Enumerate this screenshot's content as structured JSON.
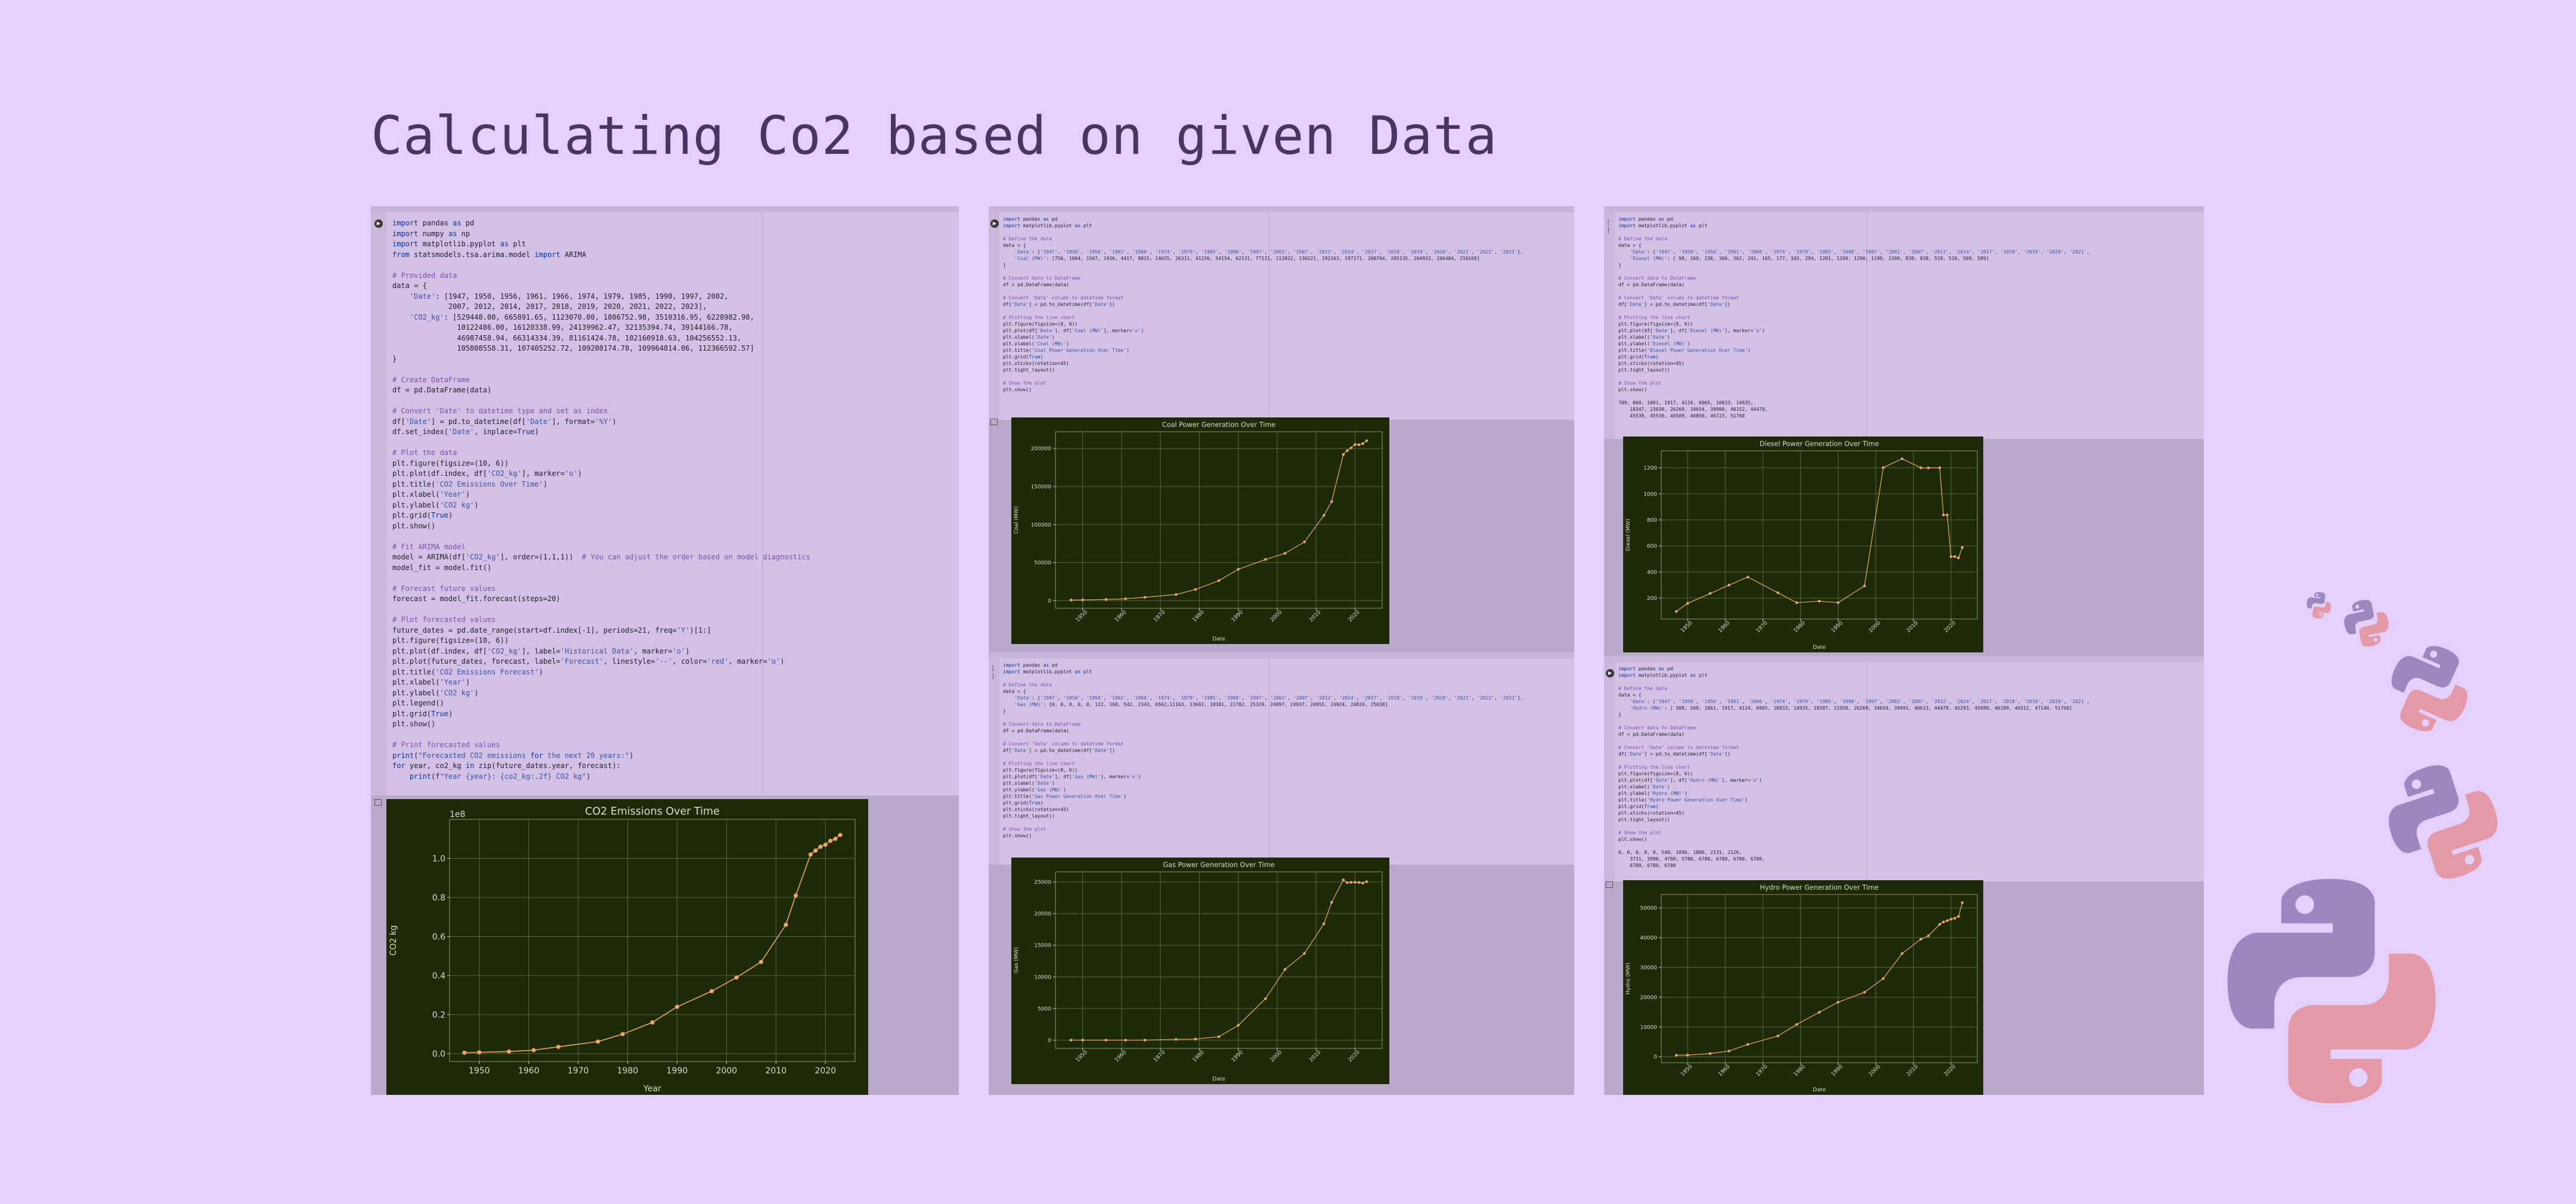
{
  "page": {
    "title": "Calculating Co2 based on given Data"
  },
  "notebook_1": {
    "code": "import pandas as pd\nimport numpy as np\nimport matplotlib.pyplot as plt\nfrom statsmodels.tsa.arima.model import ARIMA\n\n# Provided data\ndata = {\n    'Date': [1947, 1950, 1956, 1961, 1966, 1974, 1979, 1985, 1990, 1997, 2002,\n             2007, 2012, 2014, 2017, 2018, 2019, 2020, 2021, 2022, 2023],\n    'CO2_kg': [529448.00, 665891.65, 1123070.00, 1806752.98, 3510316.95, 6228982.98,\n               10122486.00, 16120338.99, 24139962.47, 32135394.74, 39144166.78,\n               46987458.94, 66314334.39, 81161424.78, 102160918.63, 104256552.13,\n               105808558.31, 107405252.72, 109208174.78, 109964814.06, 112366592.57]\n}\n\n# Create DataFrame\ndf = pd.DataFrame(data)\n\n# Convert 'Date' to datetime type and set as index\ndf['Date'] = pd.to_datetime(df['Date'], format='%Y')\ndf.set_index('Date', inplace=True)\n\n# Plot the data\nplt.figure(figsize=(10, 6))\nplt.plot(df.index, df['CO2_kg'], marker='o')\nplt.title('CO2 Emissions Over Time')\nplt.xlabel('Year')\nplt.ylabel('CO2 kg')\nplt.grid(True)\nplt.show()\n\n# Fit ARIMA model\nmodel = ARIMA(df['CO2_kg'], order=(1,1,1))  # You can adjust the order based on model diagnostics\nmodel_fit = model.fit()\n\n# Forecast future values\nforecast = model_fit.forecast(steps=20)\n\n# Plot forecasted values\nfuture_dates = pd.date_range(start=df.index[-1], periods=21, freq='Y')[1:]\nplt.figure(figsize=(10, 6))\nplt.plot(df.index, df['CO2_kg'], label='Historical Data', marker='o')\nplt.plot(future_dates, forecast, label='Forecast', linestyle='--', color='red', marker='o')\nplt.title('CO2 Emissions Forecast')\nplt.xlabel('Year')\nplt.ylabel('CO2 kg')\nplt.legend()\nplt.grid(True)\nplt.show()\n\n# Print forecasted values\nprint(\"Forecasted CO2 emissions for the next 20 years:\")\nfor year, co2_kg in zip(future_dates.year, forecast):\n    print(f\"Year {year}: {co2_kg:.2f} CO2 kg\")"
  },
  "notebook_2a": {
    "code": "import pandas as pd\nimport matplotlib.pyplot as plt\n\n# Define the data\ndata = {\n    'Date': ['1947', '1950', '1956', '1961', '1966', '1974', '1979', '1985', '1990', '1997', '2002', '2007', '2012', '2014', '2017', '2018', '2019', '2020', '2021', '2022', '2023'],\n    'Coal (MW)': [756, 1004, 1567, 2436, 4417, 8015, 14655, 26311, 41236, 54154, 62131, 77131, 112022, 130221, 192163, 197171, 200704, 205135, 204932, 206404, 210169]\n}\n\n# Convert data to DataFrame\ndf = pd.DataFrame(data)\n\n# Convert 'Date' column to datetime format\ndf['Date'] = pd.to_datetime(df['Date'])\n\n# Plotting the line chart\nplt.figure(figsize=(8, 6))\nplt.plot(df['Date'], df['Coal (MW)'], marker='o')\nplt.xlabel('Date')\nplt.ylabel('Coal (MW)')\nplt.title('Coal Power Generation Over Time')\nplt.grid(True)\nplt.xticks(rotation=45)\nplt.tight_layout()\n\n# Show the plot\nplt.show()"
  },
  "notebook_2b": {
    "code": "import pandas as pd\nimport matplotlib.pyplot as plt\n\n# Define the data\ndata = {\n    'Date': ['1947', '1950', '1956', '1961', '1966', '1974', '1979', '1985', '1990', '1997', '2002', '2007', '2012', '2014', '2017', '2018', '2019', '2020', '2021', '2022', '2023'],\n    'Gas (MW)': [0, 0, 0, 0, 0, 122, 168, 542, 2343, 6562,11163, 13692, 18381, 21782, 25329, 24897, 24937, 24955, 24924, 24824, 25038]\n}\n\n# Convert data to DataFrame\ndf = pd.DataFrame(data)\n\n# Convert 'Date' column to datetime format\ndf['Date'] = pd.to_datetime(df['Date'])\n\n# Plotting the line chart\nplt.figure(figsize=(8, 6))\nplt.plot(df['Date'], df['Gas (MW)'], marker='o')\nplt.xlabel('Date')\nplt.ylabel('Gas (MW)')\nplt.title('Gas Power Generation Over Time')\nplt.grid(True)\nplt.xticks(rotation=45)\nplt.tight_layout()\n\n# Show the plot\nplt.show()"
  },
  "notebook_3a": {
    "code": "import pandas as pd\nimport matplotlib.pyplot as plt\n\n# Define the data\ndata = {\n    'Date': ['1947', '1950', '1956', '1961', '1966', '1974', '1979', '1985', '1990', '1997', '2002', '2007', '2012', '2014', '2017', '2018', '2019', '2020', '2021',\n    'Diesel (MW)': [ 98, 160, 236, 300, 362, 241, 165, 177, 165, 294, 1201, 1269, 1200, 1199, 1200, 838, 838, 519, 519, 509, 589]\n}\n\n# Convert data to DataFrame\ndf = pd.DataFrame(data)\n\n# Convert 'Date' column to datetime format\ndf['Date'] = pd.to_datetime(df['Date'])\n\n# Plotting the line chart\nplt.figure(figsize=(8, 6))\nplt.plot(df['Date'], df['Diesel (MW)'], marker='o')\nplt.xlabel('Date')\nplt.ylabel('Diesel (MW)')\nplt.title('Diesel Power Generation Over Time')\nplt.grid(True)\nplt.xticks(rotation=45)\nplt.tight_layout()\n\n# Show the plot\nplt.show()\n\n709, 860, 1001, 1917, 4124, 6065, 10833, 14935,\n    18347, 23030, 26269, 34654, 39990, 40152, 44478,\n    45539, 45539, 46509, 46850, 46723, 51760"
  },
  "notebook_3b": {
    "code": "import pandas as pd\nimport matplotlib.pyplot as plt\n\n# Define the data\ndata = {\n    'Date': ['1947', '1950', '1956', '1961', '1966', '1974', '1979', '1985', '1990', '1997', '2002', '2007', '2012', '2014', '2017', '2018', '2019', '2020', '2021',\n    'Hydro (MW)': [ 508, 560, 1061, 1917, 4124, 6965, 10833, 14935, 18307, 21658, 26269, 34654, 39491, 40613, 44478, 45293, 45699, 46209, 46512, 47140, 51760]\n}\n\n# Convert data to DataFrame\ndf = pd.DataFrame(data)\n\n# Convert 'Date' column to datetime format\ndf['Date'] = pd.to_datetime(df['Date'])\n\n# Plotting the line chart\nplt.figure(figsize=(8, 6))\nplt.plot(df['Date'], df['Hydro (MW)'], marker='o')\nplt.xlabel('Date')\nplt.ylabel('Hydro (MW)')\nplt.title('Hydro Power Generation Over Time')\nplt.grid(True)\nplt.xticks(rotation=45)\nplt.tight_layout()\n\n# Show the plot\nplt.show()\n\n0, 0, 0, 0, 0, 540, 1096, 1800, 2131, 2126,\n    3731, 3990, 4780, 5780, 6780, 6780, 6780, 6780,\n    6780, 6780, 6780"
  },
  "colors": {
    "page_bg": "#e3d0fd",
    "plot_bg": "#1d2a07",
    "line": "#f0a860",
    "grid": "#5a6640",
    "python_purple": "#9b88c0",
    "python_pink": "#e49aa6"
  },
  "icons": [
    "run-icon",
    "output-icon",
    "python-logo-icon"
  ],
  "chart_data": [
    {
      "type": "line",
      "title": "CO2 Emissions Over Time",
      "xlabel": "Year",
      "ylabel": "CO2 kg",
      "scale_label": "1e8",
      "x": [
        1947,
        1950,
        1956,
        1961,
        1966,
        1974,
        1979,
        1985,
        1990,
        1997,
        2002,
        2007,
        2012,
        2014,
        2017,
        2018,
        2019,
        2020,
        2021,
        2022,
        2023
      ],
      "values": [
        0.005,
        0.007,
        0.011,
        0.018,
        0.035,
        0.062,
        0.1,
        0.16,
        0.24,
        0.32,
        0.39,
        0.47,
        0.66,
        0.81,
        1.02,
        1.04,
        1.06,
        1.07,
        1.09,
        1.1,
        1.12
      ],
      "xlim": [
        1944,
        2026
      ],
      "ylim": [
        -0.04,
        1.2
      ],
      "xticks": [
        1950,
        1960,
        1970,
        1980,
        1990,
        2000,
        2010,
        2020
      ],
      "xtick_labels": [
        "1950",
        "1960",
        "1970",
        "1980",
        "1990",
        "2000",
        "2010",
        "2020"
      ],
      "yticks": [
        0.0,
        0.2,
        0.4,
        0.6,
        0.8,
        1.0
      ],
      "ytick_labels": [
        "0.0",
        "0.2",
        "0.4",
        "0.6",
        "0.8",
        "1.0"
      ],
      "grid": true
    },
    {
      "type": "line",
      "title": "Coal Power Generation Over Time",
      "xlabel": "Date",
      "ylabel": "Coal (MW)",
      "x": [
        1947,
        1950,
        1956,
        1961,
        1966,
        1974,
        1979,
        1985,
        1990,
        1997,
        2002,
        2007,
        2012,
        2014,
        2017,
        2018,
        2019,
        2020,
        2021,
        2022,
        2023
      ],
      "values": [
        756,
        1004,
        1567,
        2436,
        4417,
        8015,
        14655,
        26311,
        41236,
        54154,
        62131,
        77131,
        112022,
        130221,
        192163,
        197171,
        200704,
        205135,
        204932,
        206404,
        210169
      ],
      "xlim": [
        1943,
        2027
      ],
      "ylim": [
        -10000,
        222000
      ],
      "xticks": [
        1950,
        1960,
        1970,
        1980,
        1990,
        2000,
        2010,
        2020
      ],
      "xtick_labels": [
        "1950",
        "1960",
        "1970",
        "1980",
        "1990",
        "2000",
        "2010",
        "2020"
      ],
      "yticks": [
        0,
        50000,
        100000,
        150000,
        200000
      ],
      "ytick_labels": [
        "0",
        "50000",
        "100000",
        "150000",
        "200000"
      ],
      "grid": true
    },
    {
      "type": "line",
      "title": "Gas Power Generation Over Time",
      "xlabel": "Date",
      "ylabel": "Gas (MW)",
      "x": [
        1947,
        1950,
        1956,
        1961,
        1966,
        1974,
        1979,
        1985,
        1990,
        1997,
        2002,
        2007,
        2012,
        2014,
        2017,
        2018,
        2019,
        2020,
        2021,
        2022,
        2023
      ],
      "values": [
        0,
        0,
        0,
        0,
        0,
        122,
        168,
        542,
        2343,
        6562,
        11163,
        13692,
        18381,
        21782,
        25329,
        24897,
        24937,
        24955,
        24924,
        24824,
        25038
      ],
      "xlim": [
        1943,
        2027
      ],
      "ylim": [
        -1300,
        26600
      ],
      "xticks": [
        1950,
        1960,
        1970,
        1980,
        1990,
        2000,
        2010,
        2020
      ],
      "xtick_labels": [
        "1950",
        "1960",
        "1970",
        "1980",
        "1990",
        "2000",
        "2010",
        "2020"
      ],
      "yticks": [
        0,
        5000,
        10000,
        15000,
        20000,
        25000
      ],
      "ytick_labels": [
        "0",
        "5000",
        "10000",
        "15000",
        "20000",
        "25000"
      ],
      "grid": true
    },
    {
      "type": "line",
      "title": "Diesel Power Generation Over Time",
      "xlabel": "Date",
      "ylabel": "Diesel (MW)",
      "x": [
        1947,
        1950,
        1956,
        1961,
        1966,
        1974,
        1979,
        1985,
        1990,
        1997,
        2002,
        2007,
        2012,
        2014,
        2017,
        2018,
        2019,
        2020,
        2021,
        2022,
        2023
      ],
      "values": [
        98,
        160,
        236,
        300,
        362,
        241,
        165,
        177,
        165,
        294,
        1201,
        1269,
        1200,
        1199,
        1200,
        838,
        838,
        519,
        519,
        509,
        589
      ],
      "xlim": [
        1943,
        2027
      ],
      "ylim": [
        40,
        1330
      ],
      "xticks": [
        1950,
        1960,
        1970,
        1980,
        1990,
        2000,
        2010,
        2020
      ],
      "xtick_labels": [
        "1950",
        "1960",
        "1970",
        "1980",
        "1990",
        "2000",
        "2010",
        "2020"
      ],
      "yticks": [
        200,
        400,
        600,
        800,
        1000,
        1200
      ],
      "ytick_labels": [
        "200",
        "400",
        "600",
        "800",
        "1000",
        "1200"
      ],
      "grid": true
    },
    {
      "type": "line",
      "title": "Hydro Power Generation Over Time",
      "xlabel": "Date",
      "ylabel": "Hydro (MW)",
      "x": [
        1947,
        1950,
        1956,
        1961,
        1966,
        1974,
        1979,
        1985,
        1990,
        1997,
        2002,
        2007,
        2012,
        2014,
        2017,
        2018,
        2019,
        2020,
        2021,
        2022,
        2023
      ],
      "values": [
        508,
        560,
        1061,
        1917,
        4124,
        6965,
        10833,
        14935,
        18307,
        21658,
        26269,
        34654,
        39491,
        40613,
        44478,
        45293,
        45699,
        46209,
        46512,
        47140,
        51760
      ],
      "xlim": [
        1943,
        2027
      ],
      "ylim": [
        -2000,
        54500
      ],
      "xticks": [
        1950,
        1960,
        1970,
        1980,
        1990,
        2000,
        2010,
        2020
      ],
      "xtick_labels": [
        "1950",
        "1960",
        "1970",
        "1980",
        "1990",
        "2000",
        "2010",
        "2020"
      ],
      "yticks": [
        0,
        10000,
        20000,
        30000,
        40000,
        50000
      ],
      "ytick_labels": [
        "0",
        "10000",
        "20000",
        "30000",
        "40000",
        "50000"
      ],
      "grid": true
    }
  ]
}
